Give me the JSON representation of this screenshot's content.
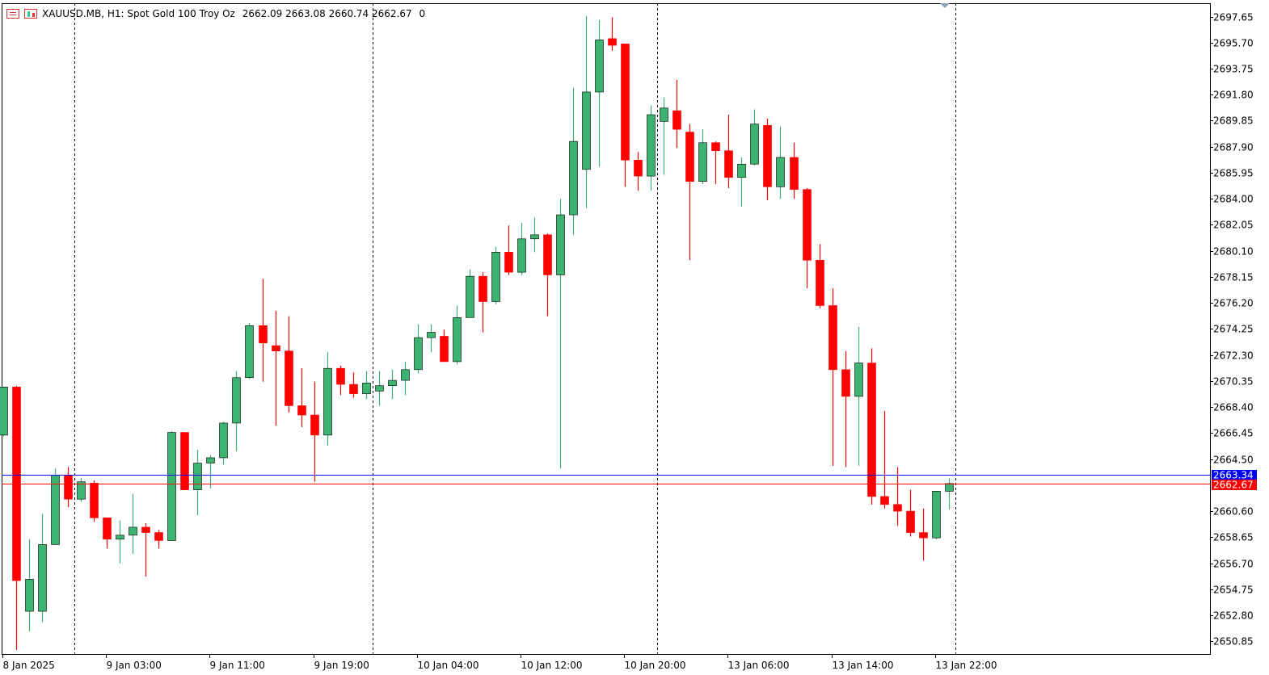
{
  "window": {
    "symbol_title": "XAUUSD.MB, H1:  Spot Gold 100 Troy Oz",
    "ohlc": "2662.09 2663.08 2660.74 2662.67",
    "volume": "0"
  },
  "colors": {
    "bull": "#3CB371",
    "bear": "#FF0000",
    "bid_line": "#FF0000",
    "ask_line": "#0000FF",
    "grid_separator": "#000000"
  },
  "chart_data": {
    "type": "candlestick",
    "timeframe": "H1",
    "ylim": [
      2649.9,
      2698.65
    ],
    "y_ticks": [
      "2697.65",
      "2695.70",
      "2693.75",
      "2691.80",
      "2689.85",
      "2687.90",
      "2685.95",
      "2684.00",
      "2682.05",
      "2680.10",
      "2678.15",
      "2676.20",
      "2674.25",
      "2672.30",
      "2670.35",
      "2668.40",
      "2666.45",
      "2664.50",
      "2660.60",
      "2658.65",
      "2656.70",
      "2654.75",
      "2652.80",
      "2650.85"
    ],
    "x_labels": [
      {
        "bar": 0,
        "text": "8 Jan 2025"
      },
      {
        "bar": 8,
        "text": "9 Jan 03:00"
      },
      {
        "bar": 16,
        "text": "9 Jan 11:00"
      },
      {
        "bar": 24,
        "text": "9 Jan 19:00"
      },
      {
        "bar": 32,
        "text": "10 Jan 04:00"
      },
      {
        "bar": 40,
        "text": "10 Jan 12:00"
      },
      {
        "bar": 48,
        "text": "10 Jan 20:00"
      },
      {
        "bar": 56,
        "text": "13 Jan 06:00"
      },
      {
        "bar": 64,
        "text": "13 Jan 14:00"
      },
      {
        "bar": 72,
        "text": "13 Jan 22:00"
      }
    ],
    "day_separators": [
      5.5,
      28.5,
      50.5,
      73.5
    ],
    "candles": [
      {
        "o": 2666.3,
        "h": 2669.9,
        "l": 2666.2,
        "c": 2669.9
      },
      {
        "o": 2669.9,
        "h": 2670.0,
        "l": 2650.2,
        "c": 2655.4
      },
      {
        "o": 2653.1,
        "h": 2658.5,
        "l": 2651.6,
        "c": 2655.5
      },
      {
        "o": 2653.1,
        "h": 2660.4,
        "l": 2652.3,
        "c": 2658.1
      },
      {
        "o": 2658.1,
        "h": 2663.8,
        "l": 2658.1,
        "c": 2663.3
      },
      {
        "o": 2663.3,
        "h": 2663.9,
        "l": 2660.9,
        "c": 2661.5
      },
      {
        "o": 2661.5,
        "h": 2663.1,
        "l": 2661.3,
        "c": 2662.8
      },
      {
        "o": 2662.7,
        "h": 2662.9,
        "l": 2659.8,
        "c": 2660.1
      },
      {
        "o": 2660.1,
        "h": 2660.1,
        "l": 2657.8,
        "c": 2658.5
      },
      {
        "o": 2658.5,
        "h": 2659.9,
        "l": 2656.7,
        "c": 2658.8
      },
      {
        "o": 2658.8,
        "h": 2661.9,
        "l": 2657.4,
        "c": 2659.4
      },
      {
        "o": 2659.4,
        "h": 2659.7,
        "l": 2655.7,
        "c": 2659.0
      },
      {
        "o": 2659.0,
        "h": 2659.2,
        "l": 2657.8,
        "c": 2658.4
      },
      {
        "o": 2658.4,
        "h": 2666.6,
        "l": 2658.4,
        "c": 2666.5
      },
      {
        "o": 2666.5,
        "h": 2666.5,
        "l": 2662.2,
        "c": 2662.2
      },
      {
        "o": 2662.2,
        "h": 2665.2,
        "l": 2660.3,
        "c": 2664.2
      },
      {
        "o": 2664.2,
        "h": 2664.8,
        "l": 2662.3,
        "c": 2664.6
      },
      {
        "o": 2664.6,
        "h": 2667.3,
        "l": 2664.1,
        "c": 2667.2
      },
      {
        "o": 2667.2,
        "h": 2671.1,
        "l": 2665.1,
        "c": 2670.6
      },
      {
        "o": 2670.6,
        "h": 2674.7,
        "l": 2670.5,
        "c": 2674.5
      },
      {
        "o": 2674.5,
        "h": 2678.0,
        "l": 2670.3,
        "c": 2673.2
      },
      {
        "o": 2673.0,
        "h": 2675.6,
        "l": 2667.0,
        "c": 2672.6
      },
      {
        "o": 2672.6,
        "h": 2675.2,
        "l": 2668.0,
        "c": 2668.5
      },
      {
        "o": 2668.5,
        "h": 2671.3,
        "l": 2666.9,
        "c": 2667.8
      },
      {
        "o": 2667.8,
        "h": 2670.3,
        "l": 2662.8,
        "c": 2666.3
      },
      {
        "o": 2666.3,
        "h": 2672.5,
        "l": 2665.5,
        "c": 2671.3
      },
      {
        "o": 2671.3,
        "h": 2671.5,
        "l": 2669.3,
        "c": 2670.1
      },
      {
        "o": 2670.1,
        "h": 2671.0,
        "l": 2669.1,
        "c": 2669.4
      },
      {
        "o": 2669.4,
        "h": 2671.1,
        "l": 2669.0,
        "c": 2670.2
      },
      {
        "o": 2669.6,
        "h": 2671.1,
        "l": 2668.5,
        "c": 2670.0
      },
      {
        "o": 2670.0,
        "h": 2671.2,
        "l": 2669.0,
        "c": 2670.4
      },
      {
        "o": 2670.4,
        "h": 2671.8,
        "l": 2669.3,
        "c": 2671.2
      },
      {
        "o": 2671.2,
        "h": 2674.6,
        "l": 2670.9,
        "c": 2673.6
      },
      {
        "o": 2673.6,
        "h": 2674.6,
        "l": 2672.5,
        "c": 2674.0
      },
      {
        "o": 2673.7,
        "h": 2674.2,
        "l": 2671.8,
        "c": 2671.8
      },
      {
        "o": 2671.8,
        "h": 2676.0,
        "l": 2671.6,
        "c": 2675.1
      },
      {
        "o": 2675.1,
        "h": 2678.7,
        "l": 2675.1,
        "c": 2678.2
      },
      {
        "o": 2678.2,
        "h": 2678.5,
        "l": 2674.0,
        "c": 2676.3
      },
      {
        "o": 2676.3,
        "h": 2680.4,
        "l": 2676.1,
        "c": 2680.0
      },
      {
        "o": 2680.0,
        "h": 2682.0,
        "l": 2678.3,
        "c": 2678.5
      },
      {
        "o": 2678.5,
        "h": 2682.2,
        "l": 2678.3,
        "c": 2681.0
      },
      {
        "o": 2681.0,
        "h": 2682.6,
        "l": 2680.0,
        "c": 2681.3
      },
      {
        "o": 2681.3,
        "h": 2681.4,
        "l": 2675.2,
        "c": 2678.3
      },
      {
        "o": 2678.3,
        "h": 2684.0,
        "l": 2663.8,
        "c": 2682.8
      },
      {
        "o": 2682.8,
        "h": 2692.3,
        "l": 2681.3,
        "c": 2688.3
      },
      {
        "o": 2686.2,
        "h": 2697.7,
        "l": 2683.3,
        "c": 2692.0
      },
      {
        "o": 2692.0,
        "h": 2697.4,
        "l": 2686.4,
        "c": 2695.9
      },
      {
        "o": 2696.0,
        "h": 2697.6,
        "l": 2695.1,
        "c": 2695.5
      },
      {
        "o": 2695.6,
        "h": 2695.6,
        "l": 2684.9,
        "c": 2686.9
      },
      {
        "o": 2686.9,
        "h": 2687.5,
        "l": 2684.6,
        "c": 2685.7
      },
      {
        "o": 2685.7,
        "h": 2691.0,
        "l": 2684.6,
        "c": 2690.3
      },
      {
        "o": 2689.8,
        "h": 2691.6,
        "l": 2685.8,
        "c": 2690.8
      },
      {
        "o": 2690.6,
        "h": 2692.9,
        "l": 2687.8,
        "c": 2689.2
      },
      {
        "o": 2689.0,
        "h": 2689.6,
        "l": 2679.4,
        "c": 2685.3
      },
      {
        "o": 2685.3,
        "h": 2689.2,
        "l": 2685.1,
        "c": 2688.2
      },
      {
        "o": 2688.2,
        "h": 2688.3,
        "l": 2685.1,
        "c": 2687.6
      },
      {
        "o": 2687.6,
        "h": 2690.3,
        "l": 2684.8,
        "c": 2685.6
      },
      {
        "o": 2685.6,
        "h": 2687.1,
        "l": 2683.4,
        "c": 2686.6
      },
      {
        "o": 2686.6,
        "h": 2690.7,
        "l": 2686.5,
        "c": 2689.6
      },
      {
        "o": 2689.5,
        "h": 2690.0,
        "l": 2683.9,
        "c": 2684.9
      },
      {
        "o": 2684.9,
        "h": 2689.4,
        "l": 2684.0,
        "c": 2687.1
      },
      {
        "o": 2687.1,
        "h": 2688.2,
        "l": 2684.0,
        "c": 2684.7
      },
      {
        "o": 2684.7,
        "h": 2684.8,
        "l": 2677.3,
        "c": 2679.4
      },
      {
        "o": 2679.4,
        "h": 2680.6,
        "l": 2675.8,
        "c": 2676.0
      },
      {
        "o": 2676.0,
        "h": 2677.3,
        "l": 2664.0,
        "c": 2671.2
      },
      {
        "o": 2671.2,
        "h": 2672.6,
        "l": 2663.9,
        "c": 2669.2
      },
      {
        "o": 2669.2,
        "h": 2674.4,
        "l": 2664.0,
        "c": 2671.7
      },
      {
        "o": 2671.7,
        "h": 2672.8,
        "l": 2661.1,
        "c": 2661.7
      },
      {
        "o": 2661.7,
        "h": 2668.1,
        "l": 2660.8,
        "c": 2661.1
      },
      {
        "o": 2661.1,
        "h": 2663.9,
        "l": 2659.5,
        "c": 2660.6
      },
      {
        "o": 2660.6,
        "h": 2662.2,
        "l": 2658.7,
        "c": 2659.0
      },
      {
        "o": 2659.0,
        "h": 2660.8,
        "l": 2656.9,
        "c": 2658.6
      },
      {
        "o": 2658.6,
        "h": 2662.1,
        "l": 2658.5,
        "c": 2662.1
      },
      {
        "o": 2662.09,
        "h": 2663.08,
        "l": 2660.74,
        "c": 2662.67
      }
    ],
    "ask_price": 2663.34,
    "bid_price": 2662.67,
    "ask_label": "2663.34",
    "bid_label": "2662.67"
  }
}
